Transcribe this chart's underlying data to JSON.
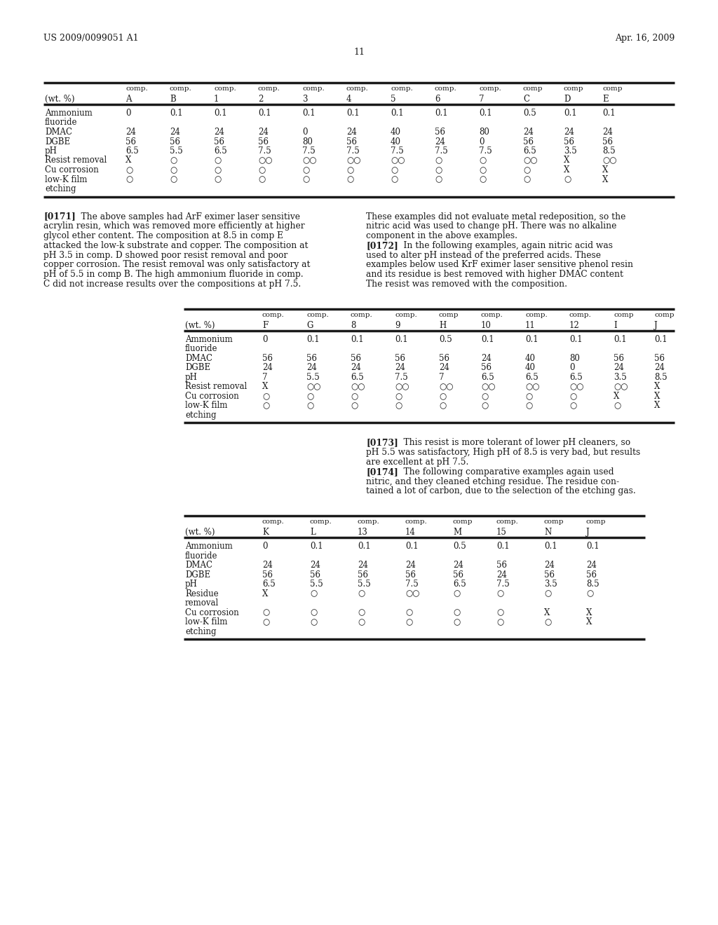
{
  "header_left": "US 2009/0099051 A1",
  "header_right": "Apr. 16, 2009",
  "page_number": "11",
  "background_color": "#ffffff",
  "text_color": "#1a1a1a",
  "table1": {
    "col_labels1": [
      "",
      "comp.",
      "comp.",
      "comp.",
      "comp.",
      "comp.",
      "comp.",
      "comp.",
      "comp.",
      "comp.",
      "comp",
      "comp",
      "comp"
    ],
    "col_labels2": [
      "(wt. %)",
      "A",
      "B",
      "1",
      "2",
      "3",
      "4",
      "5",
      "6",
      "7",
      "C",
      "D",
      "E"
    ],
    "rows": [
      [
        "Ammonium",
        "0",
        "0.1",
        "0.1",
        "0.1",
        "0.1",
        "0.1",
        "0.1",
        "0.1",
        "0.1",
        "0.5",
        "0.1",
        "0.1"
      ],
      [
        "fluoride",
        "",
        "",
        "",
        "",
        "",
        "",
        "",
        "",
        "",
        "",
        "",
        ""
      ],
      [
        "DMAC",
        "24",
        "24",
        "24",
        "24",
        "0",
        "24",
        "40",
        "56",
        "80",
        "24",
        "24",
        "24"
      ],
      [
        "DGBE",
        "56",
        "56",
        "56",
        "56",
        "80",
        "56",
        "40",
        "24",
        "0",
        "56",
        "56",
        "56"
      ],
      [
        "pH",
        "6.5",
        "5.5",
        "6.5",
        "7.5",
        "7.5",
        "7.5",
        "7.5",
        "7.5",
        "7.5",
        "6.5",
        "3.5",
        "8.5"
      ],
      [
        "Resist removal",
        "X",
        "○",
        "○",
        "○○",
        "○○",
        "○○",
        "○○",
        "○",
        "○",
        "○○",
        "X",
        "○○"
      ],
      [
        "Cu corrosion",
        "○",
        "○",
        "○",
        "○",
        "○",
        "○",
        "○",
        "○",
        "○",
        "○",
        "X",
        "X"
      ],
      [
        "low-K film",
        "○",
        "○",
        "○",
        "○",
        "○",
        "○",
        "○",
        "○",
        "○",
        "○",
        "○",
        "X"
      ],
      [
        "etching",
        "",
        "",
        "",
        "",
        "",
        "",
        "",
        "",
        "",
        "",
        "",
        ""
      ]
    ]
  },
  "para1_left_lines": [
    "[0171]    The above samples had ArF eximer laser sensitive",
    "acrylin resin, which was removed more efficiently at higher",
    "glycol ether content. The composition at 8.5 in comp E",
    "attacked the low-k substrate and copper. The composition at",
    "pH 3.5 in comp. D showed poor resist removal and poor",
    "copper corrosion. The resist removal was only satisfactory at",
    "pH of 5.5 in comp B. The high ammonium fluoride in comp.",
    "C did not increase results over the compositions at pH 7.5."
  ],
  "para1_right_lines": [
    "These examples did not evaluate metal redeposition, so the",
    "nitric acid was used to change pH. There was no alkaline",
    "component in the above examples.",
    "[0172]    In the following examples, again nitric acid was",
    "used to alter pH instead of the preferred acids. These",
    "examples below used KrF eximer laser sensitive phenol resin",
    "and its residue is best removed with higher DMAC content",
    "The resist was removed with the composition."
  ],
  "table2": {
    "col_labels1": [
      "",
      "comp.",
      "comp.",
      "comp.",
      "comp.",
      "comp",
      "comp.",
      "comp.",
      "comp.",
      "comp",
      "comp"
    ],
    "col_labels2": [
      "(wt. %)",
      "F",
      "G",
      "8",
      "9",
      "H",
      "10",
      "11",
      "12",
      "I",
      "J"
    ],
    "rows": [
      [
        "Ammonium",
        "0",
        "0.1",
        "0.1",
        "0.1",
        "0.5",
        "0.1",
        "0.1",
        "0.1",
        "0.1",
        "0.1"
      ],
      [
        "fluoride",
        "",
        "",
        "",
        "",
        "",
        "",
        "",
        "",
        "",
        ""
      ],
      [
        "DMAC",
        "56",
        "56",
        "56",
        "56",
        "56",
        "24",
        "40",
        "80",
        "56",
        "56"
      ],
      [
        "DGBE",
        "24",
        "24",
        "24",
        "24",
        "24",
        "56",
        "40",
        "0",
        "24",
        "24"
      ],
      [
        "pH",
        "7",
        "5.5",
        "6.5",
        "7.5",
        "7",
        "6.5",
        "6.5",
        "6.5",
        "3.5",
        "8.5"
      ],
      [
        "Resist removal",
        "X",
        "○○",
        "○○",
        "○○",
        "○○",
        "○○",
        "○○",
        "○○",
        "○○",
        "X"
      ],
      [
        "Cu corrosion",
        "○",
        "○",
        "○",
        "○",
        "○",
        "○",
        "○",
        "○",
        "X",
        "X"
      ],
      [
        "low-K film",
        "○",
        "○",
        "○",
        "○",
        "○",
        "○",
        "○",
        "○",
        "○",
        "X"
      ],
      [
        "etching",
        "",
        "",
        "",
        "",
        "",
        "",
        "",
        "",
        "",
        ""
      ]
    ]
  },
  "para2_right_lines": [
    "[0173]    This resist is more tolerant of lower pH cleaners, so",
    "pH 5.5 was satisfactory, High pH of 8.5 is very bad, but results",
    "are excellent at pH 7.5.",
    "[0174]    The following comparative examples again used",
    "nitric, and they cleaned etching residue. The residue con-",
    "tained a lot of carbon, due to the selection of the etching gas."
  ],
  "table3": {
    "col_labels1": [
      "",
      "comp.",
      "comp.",
      "comp.",
      "comp.",
      "comp",
      "comp.",
      "comp",
      "comp"
    ],
    "col_labels2": [
      "(wt. %)",
      "K",
      "L",
      "13",
      "14",
      "M",
      "15",
      "N",
      "J"
    ],
    "rows": [
      [
        "Ammonium",
        "0",
        "0.1",
        "0.1",
        "0.1",
        "0.5",
        "0.1",
        "0.1",
        "0.1"
      ],
      [
        "fluoride",
        "",
        "",
        "",
        "",
        "",
        "",
        "",
        ""
      ],
      [
        "DMAC",
        "24",
        "24",
        "24",
        "24",
        "24",
        "56",
        "24",
        "24"
      ],
      [
        "DGBE",
        "56",
        "56",
        "56",
        "56",
        "56",
        "24",
        "56",
        "56"
      ],
      [
        "pH",
        "6.5",
        "5.5",
        "5.5",
        "7.5",
        "6.5",
        "7.5",
        "3.5",
        "8.5"
      ],
      [
        "Residue",
        "X",
        "○",
        "○",
        "○○",
        "○",
        "○",
        "○",
        "○"
      ],
      [
        "removal",
        "",
        "",
        "",
        "",
        "",
        "",
        "",
        ""
      ],
      [
        "Cu corrosion",
        "○",
        "○",
        "○",
        "○",
        "○",
        "○",
        "X",
        "X"
      ],
      [
        "low-K film",
        "○",
        "○",
        "○",
        "○",
        "○",
        "○",
        "○",
        "X"
      ],
      [
        "etching",
        "",
        "",
        "",
        "",
        "",
        "",
        "",
        ""
      ]
    ]
  }
}
